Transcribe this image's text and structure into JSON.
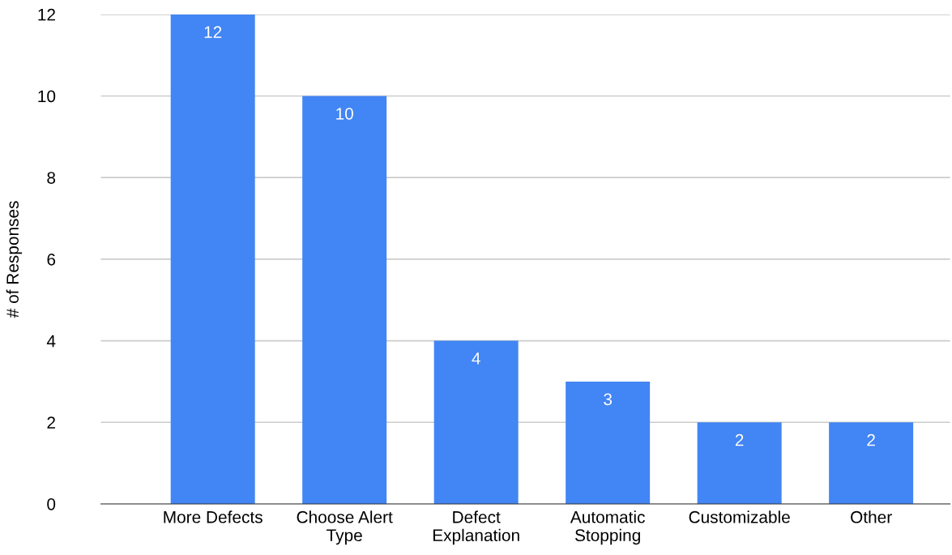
{
  "chart_data": {
    "type": "bar",
    "ylabel": "# of Responses",
    "categories": [
      "More Defects",
      "Choose Alert Type",
      "Defect Explanation",
      "Automatic Stopping",
      "Customizable",
      "Other"
    ],
    "values": [
      12,
      10,
      4,
      3,
      2,
      2
    ],
    "color": "#4285f4",
    "ylim": [
      0,
      12
    ],
    "yticks": [
      0,
      2,
      4,
      6,
      8,
      10,
      12
    ],
    "grid": "y",
    "data_labels": true
  }
}
